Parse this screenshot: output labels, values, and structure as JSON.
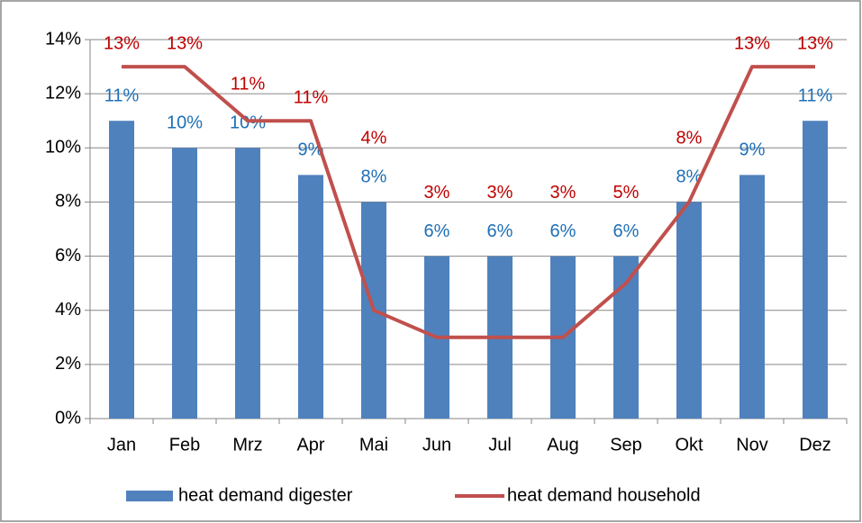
{
  "chart_data": {
    "type": "bar",
    "categories": [
      "Jan",
      "Feb",
      "Mrz",
      "Apr",
      "Mai",
      "Jun",
      "Jul",
      "Aug",
      "Sep",
      "Okt",
      "Nov",
      "Dez"
    ],
    "series": [
      {
        "name": "heat demand digester",
        "type": "bar",
        "color": "#4f81bd",
        "label_color": "#1f6fb5",
        "values": [
          11,
          10,
          10,
          9,
          8,
          6,
          6,
          6,
          6,
          8,
          9,
          11
        ],
        "value_labels": [
          "11%",
          "10%",
          "10%",
          "9%",
          "8%",
          "6%",
          "6%",
          "6%",
          "6%",
          "8%",
          "9%",
          "11%"
        ]
      },
      {
        "name": "heat demand household",
        "type": "line",
        "color": "#c0504d",
        "label_color": "#c00000",
        "values": [
          13,
          13,
          11,
          11,
          4,
          3,
          3,
          3,
          5,
          8,
          13,
          13
        ],
        "value_labels": [
          "13%",
          "13%",
          "11%",
          "11%",
          "4%",
          "3%",
          "3%",
          "3%",
          "5%",
          "8%",
          "13%",
          "13%"
        ]
      }
    ],
    "ylim": [
      0,
      14
    ],
    "yticks": [
      {
        "value": 0,
        "label": "0%"
      },
      {
        "value": 2,
        "label": "2%"
      },
      {
        "value": 4,
        "label": "4%"
      },
      {
        "value": 6,
        "label": "6%"
      },
      {
        "value": 8,
        "label": "8%"
      },
      {
        "value": 10,
        "label": "10%"
      },
      {
        "value": 12,
        "label": "12%"
      },
      {
        "value": 14,
        "label": "14%"
      }
    ],
    "grid": true,
    "legend": "bottom"
  }
}
